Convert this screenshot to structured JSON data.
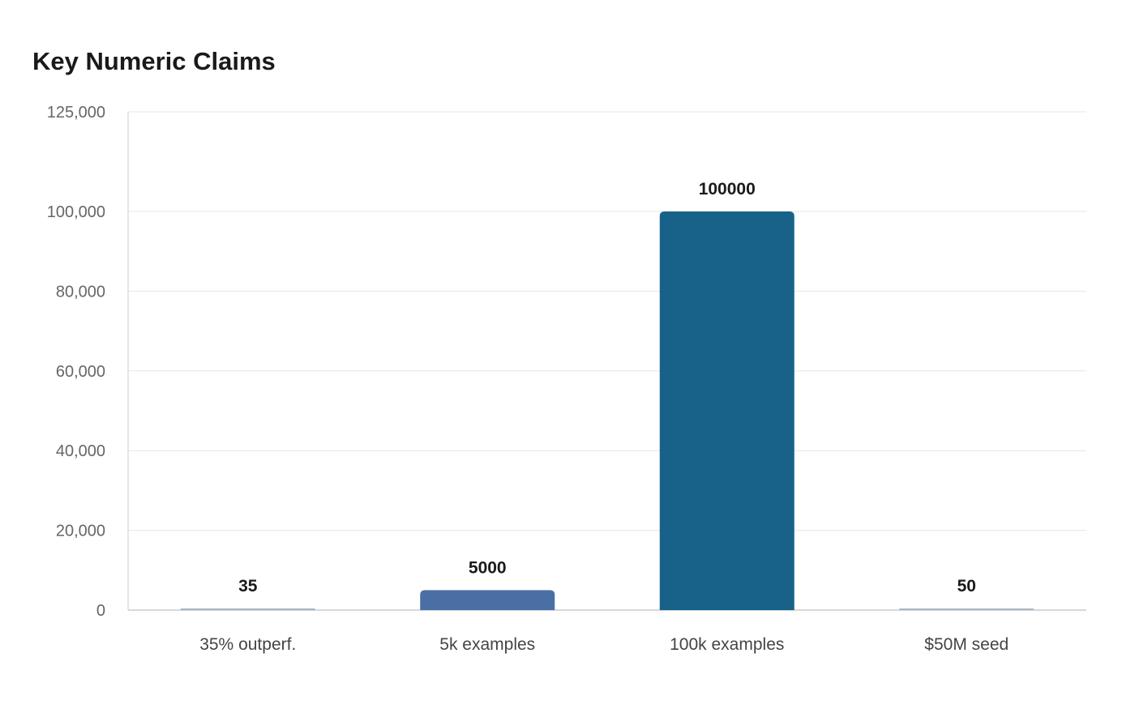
{
  "chart_data": {
    "type": "bar",
    "title": "Key Numeric Claims",
    "xlabel": "",
    "ylabel": "",
    "categories": [
      "35% outperf.",
      "5k examples",
      "100k examples",
      "$50M seed"
    ],
    "values": [
      35,
      5000,
      100000,
      50
    ],
    "data_labels": [
      "35",
      "5000",
      "100000",
      "50"
    ],
    "ylim": [
      0,
      125000
    ],
    "yticks": [
      0,
      20000,
      40000,
      60000,
      80000,
      100000,
      125000
    ],
    "ytick_labels": [
      "0",
      "20,000",
      "40,000",
      "60,000",
      "80,000",
      "100,000",
      "125,000"
    ],
    "colors": [
      "#a3b3c2",
      "#4a6fa5",
      "#186289",
      "#a8b8c2"
    ],
    "grid": true,
    "legend": "none"
  }
}
